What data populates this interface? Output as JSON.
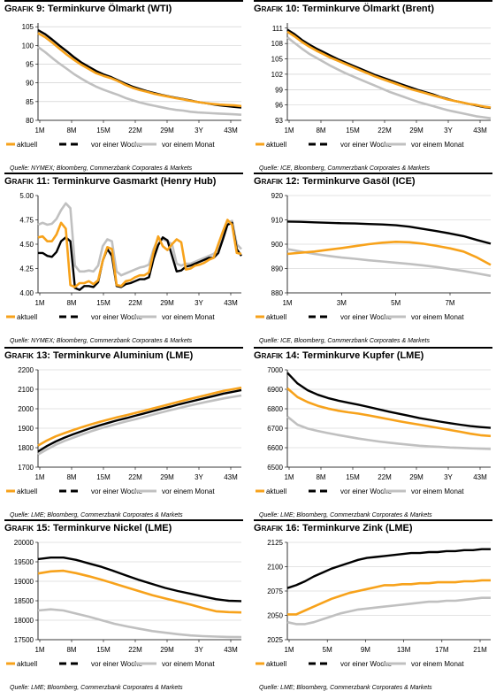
{
  "figure_prefix": "Grafik",
  "legend_labels": {
    "current": "aktuell",
    "week": "vor einer Woche",
    "month": "vor einem Monat"
  },
  "colors": {
    "current": "#f7a21b",
    "week": "#000000",
    "month": "#c0c0c0",
    "grid": "#c8c8c8"
  },
  "panels": [
    {
      "number": "9",
      "title": "Terminkurve Ölmarkt (WTI)",
      "source": "Quelle: NYMEX; Bloomberg, Commerzbank Corporates & Markets",
      "chart_data": {
        "type": "line",
        "x_ticks": [
          "1M",
          "8M",
          "15M",
          "22M",
          "29M",
          "3Y",
          "43M"
        ],
        "y_ticks": [
          80,
          85,
          90,
          95,
          100,
          105
        ],
        "ylim": [
          80,
          106
        ],
        "grid": "horizontal",
        "series": [
          {
            "key": "current",
            "values": [
              103.3,
              102.2,
              100.7,
              99.1,
              97.5,
              96.1,
              94.8,
              93.7,
              92.6,
              91.9,
              91.3,
              90.5,
              89.5,
              88.7,
              88.1,
              87.6,
              87.1,
              86.7,
              86.3,
              85.9,
              85.6,
              85.2,
              84.9,
              84.6,
              84.4,
              84.2,
              84.1,
              84.0,
              83.8
            ]
          },
          {
            "key": "week",
            "values": [
              104.1,
              103.0,
              101.5,
              99.9,
              98.4,
              96.8,
              95.4,
              94.3,
              93.2,
              92.3,
              91.6,
              90.7,
              89.8,
              89.0,
              88.4,
              87.8,
              87.3,
              86.8,
              86.4,
              86.0,
              85.7,
              85.3,
              84.9,
              84.6,
              84.3,
              84.0,
              83.8,
              83.6,
              83.4
            ]
          },
          {
            "key": "month",
            "values": [
              99.6,
              98.2,
              96.6,
              95.1,
              93.7,
              92.3,
              91.1,
              90.0,
              89.0,
              88.2,
              87.5,
              86.8,
              86.0,
              85.4,
              84.8,
              84.3,
              83.9,
              83.5,
              83.1,
              82.8,
              82.6,
              82.3,
              82.1,
              82.0,
              81.9,
              81.8,
              81.7,
              81.6,
              81.5
            ]
          }
        ]
      }
    },
    {
      "number": "10",
      "title": "Terminkurve Ölmarkt (Brent)",
      "source": "Quelle: ICE, Bloomberg, Commerzbank Corporates & Markets",
      "chart_data": {
        "type": "line",
        "x_ticks": [
          "1M",
          "8M",
          "15M",
          "22M",
          "29M",
          "3Y",
          "43M"
        ],
        "y_ticks": [
          93,
          96,
          99,
          102,
          105,
          108,
          111
        ],
        "ylim": [
          93,
          112
        ],
        "grid": "horizontal",
        "series": [
          {
            "key": "current",
            "values": [
              110.3,
              109.4,
              108.3,
              107.4,
              106.6,
              105.9,
              105.2,
              104.6,
              104.0,
              103.4,
              102.8,
              102.2,
              101.6,
              101.1,
              100.6,
              100.1,
              99.6,
              99.1,
              98.7,
              98.3,
              97.9,
              97.5,
              97.1,
              96.8,
              96.5,
              96.2,
              96.0,
              95.7,
              95.5
            ]
          },
          {
            "key": "week",
            "values": [
              110.7,
              109.8,
              108.7,
              107.8,
              107.0,
              106.3,
              105.6,
              104.9,
              104.3,
              103.7,
              103.1,
              102.5,
              101.9,
              101.4,
              100.9,
              100.4,
              99.9,
              99.4,
              98.9,
              98.5,
              98.1,
              97.6,
              97.2,
              96.8,
              96.5,
              96.2,
              95.9,
              95.6,
              95.4
            ]
          },
          {
            "key": "month",
            "values": [
              109.2,
              108.1,
              107.0,
              106.0,
              105.2,
              104.4,
              103.6,
              102.9,
              102.2,
              101.6,
              101.0,
              100.4,
              99.8,
              99.2,
              98.6,
              98.1,
              97.6,
              97.1,
              96.6,
              96.2,
              95.8,
              95.4,
              95.0,
              94.7,
              94.4,
              94.1,
              93.8,
              93.6,
              93.4
            ]
          }
        ]
      }
    },
    {
      "number": "11",
      "title": "Terminkurve Gasmarkt (Henry Hub)",
      "source": "Quelle: NYMEX; Bloomberg, Commerzbank Corporates & Markets",
      "chart_data": {
        "type": "line",
        "x_ticks": [
          "1M",
          "8M",
          "15M",
          "22M",
          "29M",
          "3Y",
          "43M"
        ],
        "y_ticks": [
          4.0,
          4.25,
          4.5,
          4.75,
          5.0
        ],
        "ylim": [
          4.0,
          5.0
        ],
        "grid": "none",
        "series": [
          {
            "key": "current",
            "values": [
              4.57,
              4.58,
              4.53,
              4.53,
              4.6,
              4.72,
              4.66,
              4.08,
              4.06,
              4.1,
              4.1,
              4.12,
              4.09,
              4.13,
              4.33,
              4.47,
              4.45,
              4.08,
              4.07,
              4.12,
              4.13,
              4.16,
              4.18,
              4.18,
              4.21,
              4.42,
              4.58,
              4.48,
              4.44,
              4.5,
              4.55,
              4.52,
              4.24,
              4.25,
              4.28,
              4.29,
              4.31,
              4.34,
              4.36,
              4.5,
              4.63,
              4.75,
              4.7,
              4.41,
              4.4
            ]
          },
          {
            "key": "week",
            "values": [
              4.41,
              4.41,
              4.38,
              4.37,
              4.42,
              4.53,
              4.57,
              4.53,
              4.05,
              4.03,
              4.07,
              4.07,
              4.06,
              4.11,
              4.33,
              4.45,
              4.38,
              4.07,
              4.06,
              4.09,
              4.1,
              4.12,
              4.14,
              4.14,
              4.16,
              4.35,
              4.49,
              4.57,
              4.54,
              4.38,
              4.22,
              4.23,
              4.27,
              4.28,
              4.3,
              4.32,
              4.34,
              4.36,
              4.36,
              4.41,
              4.55,
              4.7,
              4.72,
              4.45,
              4.38
            ]
          },
          {
            "key": "month",
            "values": [
              4.7,
              4.72,
              4.7,
              4.71,
              4.76,
              4.85,
              4.92,
              4.87,
              4.28,
              4.22,
              4.22,
              4.23,
              4.22,
              4.28,
              4.48,
              4.55,
              4.53,
              4.22,
              4.18,
              4.2,
              4.22,
              4.24,
              4.26,
              4.27,
              4.29,
              4.45,
              4.56,
              4.55,
              4.53,
              4.5,
              4.3,
              4.28,
              4.3,
              4.3,
              4.32,
              4.34,
              4.36,
              4.38,
              4.4,
              4.45,
              4.6,
              4.72,
              4.74,
              4.5,
              4.45
            ]
          }
        ]
      }
    },
    {
      "number": "12",
      "title": "Terminkurve Gasöl (ICE)",
      "source": "Quelle: ICE, Bloomberg, Commerzbank Corporates & Markets",
      "chart_data": {
        "type": "line",
        "x_ticks": [
          "1M",
          "3M",
          "5M",
          "7M"
        ],
        "x_tick_positions": [
          1,
          3,
          5,
          7
        ],
        "x_values": [
          1,
          1.5,
          2,
          2.5,
          3,
          3.5,
          4,
          4.5,
          5,
          5.5,
          6,
          6.5,
          7,
          7.5,
          8,
          8.5
        ],
        "y_ticks": [
          880,
          890,
          900,
          910,
          920
        ],
        "ylim": [
          880,
          920
        ],
        "grid": "horizontal",
        "series": [
          {
            "key": "current",
            "values": [
              896,
              896.5,
              897,
              897.7,
              898.4,
              899.2,
              900,
              900.6,
              901,
              900.8,
              900.2,
              899.3,
              898.3,
              897,
              894.5,
              891.5
            ]
          },
          {
            "key": "week",
            "values": [
              909.3,
              909.2,
              909,
              908.8,
              908.6,
              908.5,
              908.3,
              908.1,
              907.8,
              907.2,
              906.3,
              905.4,
              904.4,
              903.3,
              901.7,
              900.2
            ]
          },
          {
            "key": "month",
            "values": [
              898,
              897,
              896,
              895.2,
              894.5,
              894,
              893.4,
              892.9,
              892.4,
              891.9,
              891.3,
              890.6,
              889.8,
              889,
              888,
              887
            ]
          }
        ]
      }
    },
    {
      "number": "13",
      "title": "Terminkurve Aluminium (LME)",
      "source": "Quelle: LME; Bloomberg, Commerzbank Corporates & Markets",
      "chart_data": {
        "type": "line",
        "x_ticks": [
          "1M",
          "8M",
          "15M",
          "22M",
          "29M",
          "3Y",
          "43M"
        ],
        "y_ticks": [
          1700,
          1800,
          1900,
          2000,
          2100,
          2200
        ],
        "ylim": [
          1700,
          2200
        ],
        "grid": "horizontal",
        "series": [
          {
            "key": "current",
            "values": [
              1811,
              1837,
              1858,
              1875,
              1891,
              1906,
              1920,
              1933,
              1945,
              1957,
              1967,
              1978,
              1990,
              2002,
              2013,
              2025,
              2037,
              2048,
              2059,
              2070,
              2081,
              2092,
              2100,
              2108
            ]
          },
          {
            "key": "week",
            "values": [
              1780,
              1808,
              1832,
              1852,
              1869,
              1885,
              1901,
              1915,
              1928,
              1941,
              1952,
              1964,
              1976,
              1988,
              2000,
              2011,
              2023,
              2034,
              2045,
              2056,
              2067,
              2078,
              2087,
              2096
            ]
          },
          {
            "key": "month",
            "values": [
              1765,
              1791,
              1815,
              1835,
              1852,
              1868,
              1884,
              1898,
              1911,
              1923,
              1935,
              1946,
              1958,
              1970,
              1982,
              1993,
              2004,
              2015,
              2025,
              2035,
              2044,
              2053,
              2061,
              2068
            ]
          }
        ]
      }
    },
    {
      "number": "14",
      "title": "Terminkurve Kupfer (LME)",
      "source": "Quelle: LME; Bloomberg, Commerzbank Corporates & Markets",
      "chart_data": {
        "type": "line",
        "x_ticks": [
          "1M",
          "8M",
          "15M",
          "22M",
          "29M",
          "3Y",
          "43M"
        ],
        "y_ticks": [
          6500,
          6600,
          6700,
          6800,
          6900,
          7000
        ],
        "ylim": [
          6500,
          7000
        ],
        "grid": "horizontal",
        "series": [
          {
            "key": "current",
            "values": [
              6905,
              6860,
              6834,
              6815,
              6801,
              6790,
              6782,
              6775,
              6766,
              6756,
              6746,
              6736,
              6727,
              6718,
              6709,
              6700,
              6691,
              6682,
              6672,
              6664,
              6660
            ]
          },
          {
            "key": "week",
            "values": [
              6985,
              6930,
              6895,
              6872,
              6855,
              6842,
              6831,
              6821,
              6809,
              6797,
              6785,
              6774,
              6763,
              6752,
              6743,
              6734,
              6726,
              6718,
              6711,
              6706,
              6702
            ]
          },
          {
            "key": "month",
            "values": [
              6760,
              6718,
              6698,
              6686,
              6675,
              6665,
              6656,
              6647,
              6639,
              6632,
              6626,
              6620,
              6615,
              6610,
              6607,
              6604,
              6601,
              6599,
              6597,
              6595,
              6593
            ]
          }
        ]
      }
    },
    {
      "number": "15",
      "title": "Terminkurve Nickel (LME)",
      "source": "Quelle: LME; Bloomberg, Commerzbank Corporates & Markets",
      "chart_data": {
        "type": "line",
        "x_ticks": [
          "1M",
          "8M",
          "15M",
          "22M",
          "29M",
          "3Y",
          "43M"
        ],
        "y_ticks": [
          17500,
          18000,
          18500,
          19000,
          19500,
          20000
        ],
        "ylim": [
          17500,
          20000
        ],
        "grid": "horizontal",
        "series": [
          {
            "key": "current",
            "values": [
              19200,
              19255,
              19270,
              19210,
              19130,
              19040,
              18940,
              18840,
              18740,
              18640,
              18560,
              18480,
              18400,
              18310,
              18230,
              18210,
              18200
            ]
          },
          {
            "key": "week",
            "values": [
              19570,
              19610,
              19610,
              19550,
              19460,
              19370,
              19260,
              19140,
              19030,
              18930,
              18830,
              18750,
              18680,
              18610,
              18540,
              18500,
              18490
            ]
          },
          {
            "key": "month",
            "values": [
              18250,
              18280,
              18250,
              18170,
              18090,
              18000,
              17910,
              17840,
              17780,
              17720,
              17680,
              17640,
              17610,
              17590,
              17580,
              17570,
              17565
            ]
          }
        ]
      }
    },
    {
      "number": "16",
      "title": "Terminkurve Zink (LME)",
      "source": "Quelle: LME; Bloomberg, Commerzbank Corporates & Markets",
      "chart_data": {
        "type": "line",
        "x_ticks": [
          "1M",
          "5M",
          "9M",
          "13M",
          "17M",
          "21M"
        ],
        "y_ticks": [
          2025,
          2050,
          2075,
          2100,
          2125
        ],
        "ylim": [
          2025,
          2125
        ],
        "grid": "horizontal",
        "series": [
          {
            "key": "current",
            "values": [
              2051,
              2051,
              2055,
              2059,
              2063,
              2067,
              2070,
              2073,
              2075,
              2077,
              2079,
              2081,
              2081,
              2082,
              2082,
              2083,
              2083,
              2084,
              2084,
              2084,
              2085,
              2085,
              2086,
              2086
            ]
          },
          {
            "key": "week",
            "values": [
              2078,
              2081,
              2085,
              2090,
              2094,
              2098,
              2101,
              2104,
              2107,
              2109,
              2110,
              2111,
              2112,
              2113,
              2114,
              2114,
              2115,
              2115,
              2116,
              2116,
              2117,
              2117,
              2118,
              2118
            ]
          },
          {
            "key": "month",
            "values": [
              2043,
              2041,
              2041,
              2043,
              2046,
              2049,
              2052,
              2054,
              2056,
              2057,
              2058,
              2059,
              2060,
              2061,
              2062,
              2063,
              2064,
              2064,
              2065,
              2065,
              2066,
              2067,
              2068,
              2068
            ]
          }
        ]
      }
    }
  ]
}
